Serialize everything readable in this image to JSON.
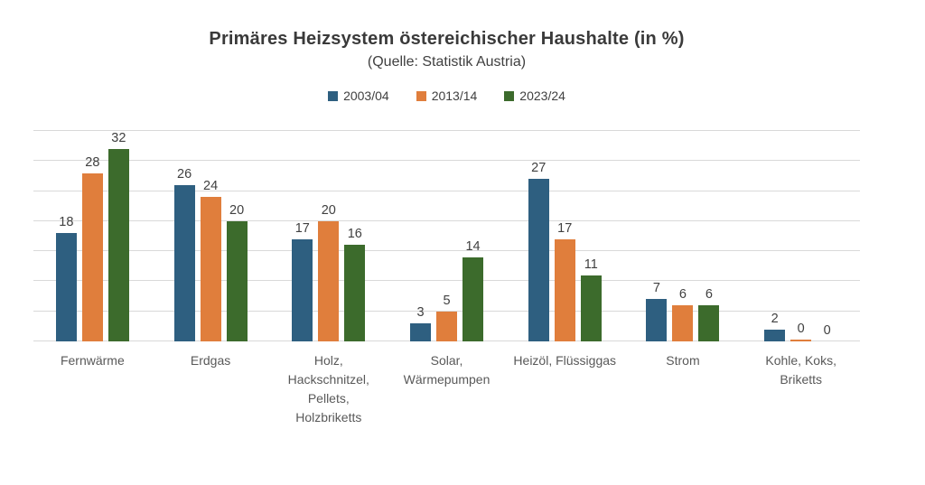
{
  "chart_data": {
    "type": "bar",
    "title": "Primäres Heizsystem östereichischer Haushalte (in %)",
    "subtitle": "(Quelle: Statistik Austria)",
    "categories": [
      "Fernwärme",
      "Erdgas",
      "Holz,\nHackschnitzel,\nPellets,\nHolzbriketts",
      "Solar,\nWärmepumpen",
      "Heizöl, Flüssiggas",
      "Strom",
      "Kohle, Koks,\nBriketts"
    ],
    "series": [
      {
        "name": "2003/04",
        "color": "#2E5F80",
        "values": [
          18,
          26,
          17,
          3,
          27,
          7,
          2
        ]
      },
      {
        "name": "2013/14",
        "color": "#E07E3C",
        "values": [
          28,
          24,
          20,
          5,
          17,
          6,
          0
        ]
      },
      {
        "name": "2023/24",
        "color": "#3C6B2C",
        "values": [
          32,
          20,
          16,
          14,
          11,
          6,
          0
        ]
      }
    ],
    "xlabel": "",
    "ylabel": "",
    "ylim": [
      0,
      35
    ],
    "gridline_interval": 5,
    "grid": true,
    "gridline_color": "#D9D9D9",
    "y_axis_tick_labels_visible": false,
    "legend_position": "top",
    "data_labels": true,
    "background_color": "#FFFFFF",
    "text_colors": {
      "title": "#3A3A3A",
      "subtitle": "#404040",
      "data_label": "#404040",
      "category_label": "#595959",
      "legend_label": "#404040"
    }
  }
}
